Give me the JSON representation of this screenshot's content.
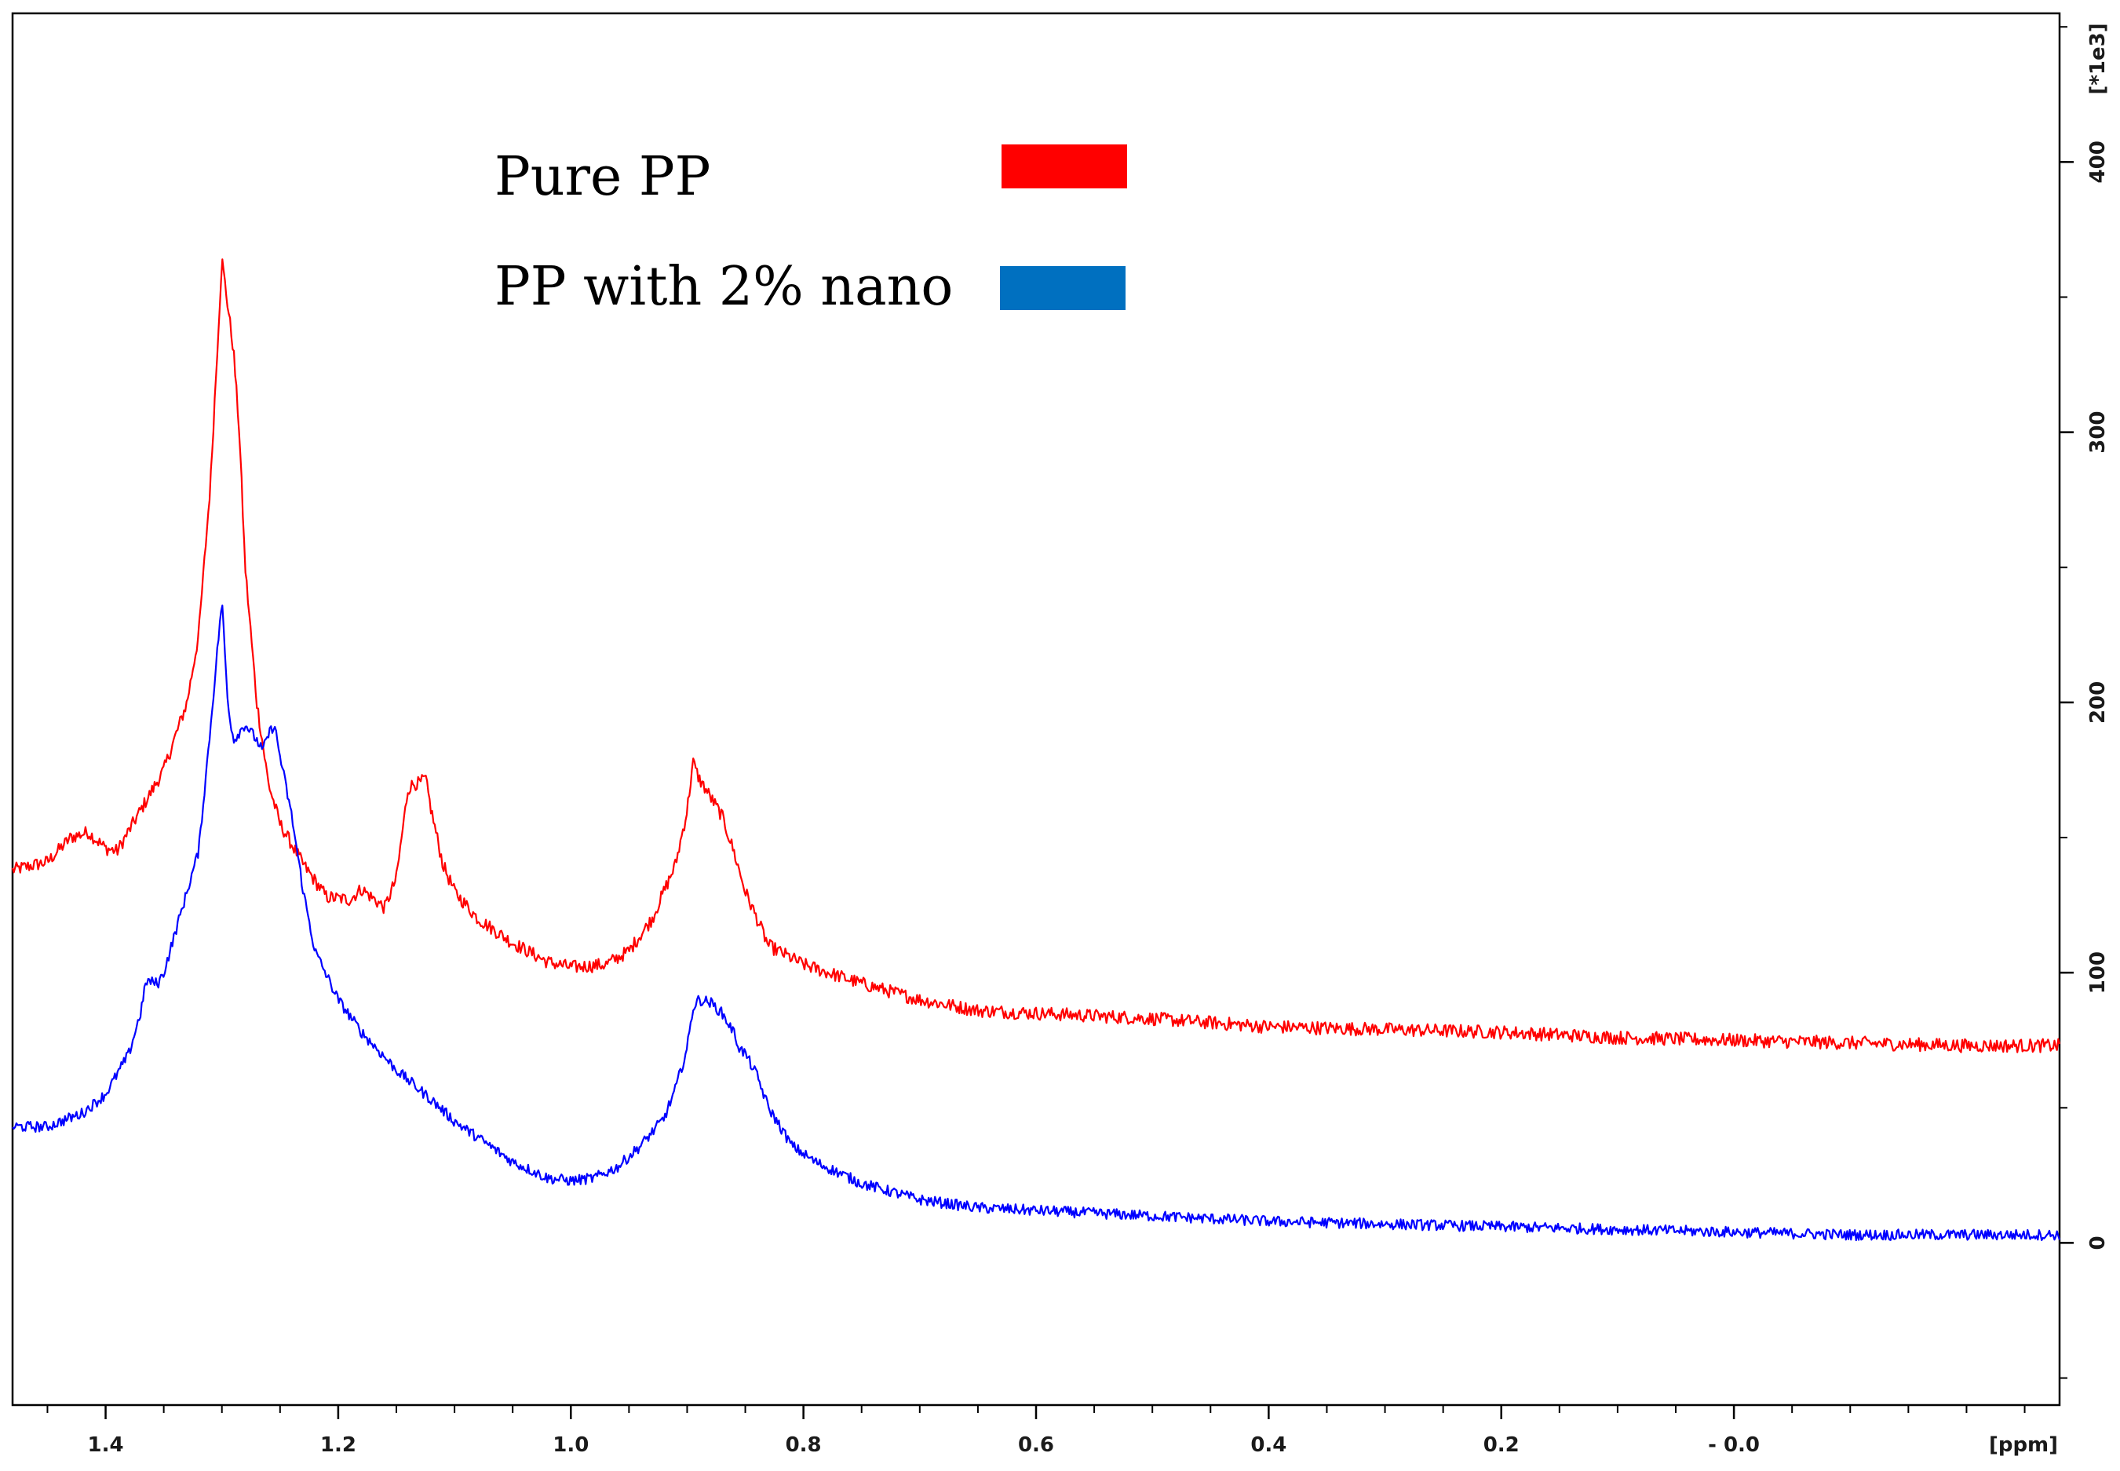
{
  "chart_data": {
    "type": "line",
    "title": "",
    "xlabel": "[ppm]",
    "ylabel": "[*1e3]",
    "xlim": [
      1.48,
      -0.28
    ],
    "ylim": [
      -60,
      455
    ],
    "x_ticks": [
      {
        "value": 1.4,
        "label": "1.4"
      },
      {
        "value": 1.2,
        "label": "1.2"
      },
      {
        "value": 1.0,
        "label": "1.0"
      },
      {
        "value": 0.8,
        "label": "0.8"
      },
      {
        "value": 0.6,
        "label": "0.6"
      },
      {
        "value": 0.4,
        "label": "0.4"
      },
      {
        "value": 0.2,
        "label": "0.2"
      },
      {
        "value": 0.0,
        "label": "- 0.0"
      }
    ],
    "y_ticks": [
      {
        "value": 0,
        "label": "0"
      },
      {
        "value": 100,
        "label": "100"
      },
      {
        "value": 200,
        "label": "200"
      },
      {
        "value": 300,
        "label": "300"
      },
      {
        "value": 400,
        "label": "400"
      }
    ],
    "legend": {
      "position": "top-center",
      "entries": [
        {
          "label": "Pure PP",
          "color": "#ff0000"
        },
        {
          "label": "PP with 2% nano",
          "color": "#0070c0"
        }
      ]
    },
    "series": [
      {
        "name": "Pure PP",
        "color": "#ff0000",
        "noise": 2.5,
        "points": [
          [
            1.48,
            138
          ],
          [
            1.45,
            141
          ],
          [
            1.43,
            150
          ],
          [
            1.415,
            152
          ],
          [
            1.4,
            146
          ],
          [
            1.39,
            145
          ],
          [
            1.37,
            160
          ],
          [
            1.35,
            175
          ],
          [
            1.33,
            200
          ],
          [
            1.32,
            225
          ],
          [
            1.31,
            280
          ],
          [
            1.3,
            364
          ],
          [
            1.29,
            330
          ],
          [
            1.285,
            300
          ],
          [
            1.28,
            250
          ],
          [
            1.27,
            200
          ],
          [
            1.26,
            170
          ],
          [
            1.25,
            155
          ],
          [
            1.23,
            140
          ],
          [
            1.21,
            128
          ],
          [
            1.19,
            127
          ],
          [
            1.18,
            131
          ],
          [
            1.16,
            124
          ],
          [
            1.15,
            135
          ],
          [
            1.14,
            168
          ],
          [
            1.135,
            170
          ],
          [
            1.13,
            170
          ],
          [
            1.125,
            172
          ],
          [
            1.12,
            160
          ],
          [
            1.11,
            140
          ],
          [
            1.1,
            130
          ],
          [
            1.08,
            120
          ],
          [
            1.05,
            111
          ],
          [
            1.02,
            104
          ],
          [
            1.0,
            102
          ],
          [
            0.97,
            103
          ],
          [
            0.95,
            108
          ],
          [
            0.93,
            120
          ],
          [
            0.91,
            140
          ],
          [
            0.9,
            160
          ],
          [
            0.895,
            178
          ],
          [
            0.89,
            172
          ],
          [
            0.88,
            165
          ],
          [
            0.87,
            158
          ],
          [
            0.86,
            145
          ],
          [
            0.85,
            130
          ],
          [
            0.83,
            110
          ],
          [
            0.8,
            103
          ],
          [
            0.75,
            96
          ],
          [
            0.7,
            90
          ],
          [
            0.65,
            86
          ],
          [
            0.6,
            85
          ],
          [
            0.5,
            83
          ],
          [
            0.4,
            80
          ],
          [
            0.3,
            79
          ],
          [
            0.2,
            78
          ],
          [
            0.1,
            76
          ],
          [
            0.0,
            75
          ],
          [
            -0.1,
            74
          ],
          [
            -0.2,
            73
          ],
          [
            -0.28,
            73
          ]
        ]
      },
      {
        "name": "PP with 2% nano",
        "color": "#0000ff",
        "noise": 2.0,
        "points": [
          [
            1.48,
            43
          ],
          [
            1.45,
            43
          ],
          [
            1.42,
            48
          ],
          [
            1.4,
            55
          ],
          [
            1.38,
            70
          ],
          [
            1.37,
            85
          ],
          [
            1.365,
            97
          ],
          [
            1.355,
            96
          ],
          [
            1.35,
            100
          ],
          [
            1.34,
            115
          ],
          [
            1.33,
            130
          ],
          [
            1.32,
            145
          ],
          [
            1.31,
            190
          ],
          [
            1.3,
            238
          ],
          [
            1.295,
            200
          ],
          [
            1.29,
            186
          ],
          [
            1.28,
            192
          ],
          [
            1.27,
            186
          ],
          [
            1.265,
            182
          ],
          [
            1.26,
            188
          ],
          [
            1.255,
            192
          ],
          [
            1.25,
            180
          ],
          [
            1.24,
            158
          ],
          [
            1.23,
            130
          ],
          [
            1.22,
            108
          ],
          [
            1.2,
            90
          ],
          [
            1.18,
            78
          ],
          [
            1.15,
            64
          ],
          [
            1.12,
            53
          ],
          [
            1.1,
            45
          ],
          [
            1.07,
            36
          ],
          [
            1.05,
            30
          ],
          [
            1.02,
            24
          ],
          [
            1.0,
            23
          ],
          [
            0.98,
            24
          ],
          [
            0.96,
            28
          ],
          [
            0.94,
            36
          ],
          [
            0.92,
            46
          ],
          [
            0.91,
            57
          ],
          [
            0.9,
            72
          ],
          [
            0.895,
            87
          ],
          [
            0.89,
            90
          ],
          [
            0.88,
            89
          ],
          [
            0.87,
            85
          ],
          [
            0.86,
            78
          ],
          [
            0.855,
            72
          ],
          [
            0.85,
            70
          ],
          [
            0.84,
            62
          ],
          [
            0.83,
            50
          ],
          [
            0.81,
            36
          ],
          [
            0.79,
            30
          ],
          [
            0.75,
            22
          ],
          [
            0.7,
            16
          ],
          [
            0.65,
            13
          ],
          [
            0.6,
            12
          ],
          [
            0.5,
            10
          ],
          [
            0.4,
            8
          ],
          [
            0.3,
            7
          ],
          [
            0.2,
            6
          ],
          [
            0.1,
            5
          ],
          [
            0.0,
            4
          ],
          [
            -0.1,
            3
          ],
          [
            -0.2,
            3
          ],
          [
            -0.28,
            3
          ]
        ]
      }
    ]
  }
}
